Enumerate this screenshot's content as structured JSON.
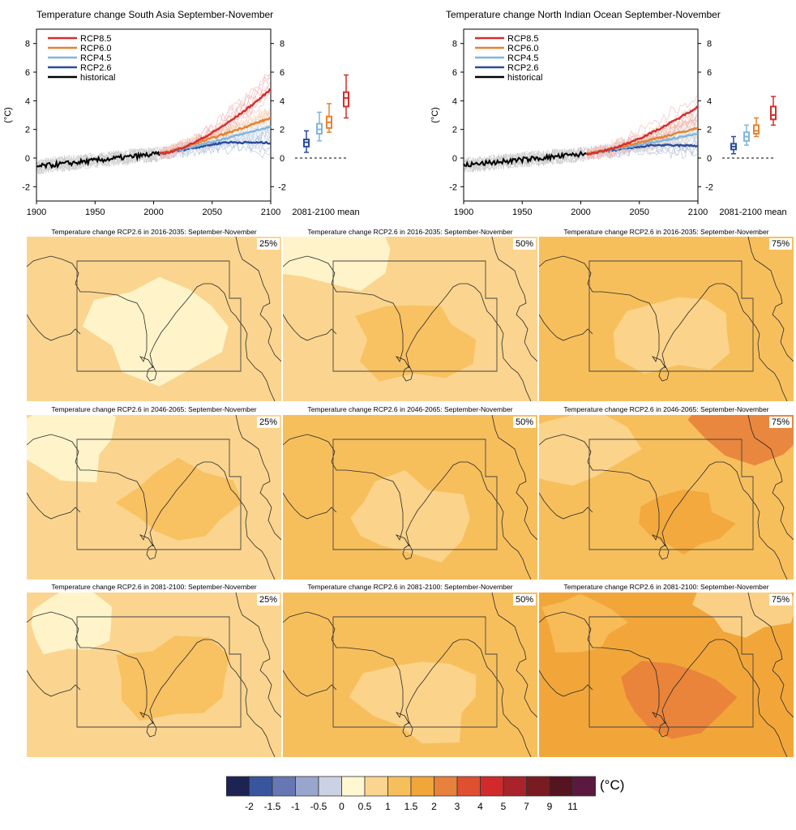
{
  "timeseries": [
    {
      "title": "Temperature change South Asia September-November",
      "ylabel": "(°C)",
      "xticks": [
        "1900",
        "1950",
        "2000",
        "2050",
        "2100"
      ],
      "yticks": [
        "-2",
        "0",
        "2",
        "4",
        "6",
        "8"
      ],
      "box_label": "2081-2100 mean",
      "legend": [
        "RCP8.5",
        "RCP6.0",
        "RCP4.5",
        "RCP2.6",
        "historical"
      ],
      "ylim": [
        -3,
        9
      ],
      "xlim": [
        1900,
        2100
      ],
      "boxes": [
        {
          "scenario": "RCP2.6",
          "median": 1.1,
          "q1": 0.8,
          "q3": 1.3,
          "min": 0.4,
          "max": 1.9
        },
        {
          "scenario": "RCP4.5",
          "median": 2.0,
          "q1": 1.7,
          "q3": 2.4,
          "min": 1.2,
          "max": 3.2
        },
        {
          "scenario": "RCP6.0",
          "median": 2.5,
          "q1": 2.1,
          "q3": 2.9,
          "min": 1.8,
          "max": 3.8
        },
        {
          "scenario": "RCP8.5",
          "median": 4.2,
          "q1": 3.6,
          "q3": 4.6,
          "min": 2.8,
          "max": 5.8
        }
      ],
      "end_means": {
        "RCP8.5": 4.8,
        "RCP6.0": 2.8,
        "RCP4.5": 2.2,
        "RCP2.6": 1.0
      },
      "start_mean": -0.6
    },
    {
      "title": "Temperature change North Indian Ocean September-November",
      "ylabel": "(°C)",
      "xticks": [
        "1900",
        "1950",
        "2000",
        "2050",
        "2100"
      ],
      "yticks": [
        "-2",
        "0",
        "2",
        "4",
        "6",
        "8"
      ],
      "box_label": "2081-2100 mean",
      "legend": [
        "RCP8.5",
        "RCP6.0",
        "RCP4.5",
        "RCP2.6",
        "historical"
      ],
      "ylim": [
        -3,
        9
      ],
      "xlim": [
        1900,
        2100
      ],
      "boxes": [
        {
          "scenario": "RCP2.6",
          "median": 0.8,
          "q1": 0.6,
          "q3": 1.0,
          "min": 0.3,
          "max": 1.5
        },
        {
          "scenario": "RCP4.5",
          "median": 1.5,
          "q1": 1.2,
          "q3": 1.8,
          "min": 0.9,
          "max": 2.3
        },
        {
          "scenario": "RCP6.0",
          "median": 1.9,
          "q1": 1.7,
          "q3": 2.3,
          "min": 1.5,
          "max": 2.8
        },
        {
          "scenario": "RCP8.5",
          "median": 3.0,
          "q1": 2.7,
          "q3": 3.6,
          "min": 2.3,
          "max": 4.3
        }
      ],
      "end_means": {
        "RCP8.5": 3.6,
        "RCP6.0": 2.1,
        "RCP4.5": 1.7,
        "RCP2.6": 0.8
      },
      "start_mean": -0.5
    }
  ],
  "scenario_colors": {
    "RCP8.5": "#d62d2d",
    "RCP6.0": "#e6822f",
    "RCP4.5": "#7fb6dd",
    "RCP2.6": "#2b4c9a",
    "historical": "#000000"
  },
  "maps": [
    {
      "title": "Temperature change RCP2.6 in 2016-2035: September-November",
      "percentile": "25%",
      "level": 0
    },
    {
      "title": "Temperature change RCP2.6 in 2016-2035: September-November",
      "percentile": "50%",
      "level": 1
    },
    {
      "title": "Temperature change RCP2.6 in 2016-2035: September-November",
      "percentile": "75%",
      "level": 2
    },
    {
      "title": "Temperature change RCP2.6 in 2046-2065: September-November",
      "percentile": "25%",
      "level": 1
    },
    {
      "title": "Temperature change RCP2.6 in 2046-2065: September-November",
      "percentile": "50%",
      "level": 2
    },
    {
      "title": "Temperature change RCP2.6 in 2046-2065: September-November",
      "percentile": "75%",
      "level": 3
    },
    {
      "title": "Temperature change RCP2.6 in 2081-2100: September-November",
      "percentile": "25%",
      "level": 1
    },
    {
      "title": "Temperature change RCP2.6 in 2081-2100: September-November",
      "percentile": "50%",
      "level": 2
    },
    {
      "title": "Temperature change RCP2.6 in 2081-2100: September-November",
      "percentile": "75%",
      "level": 4
    }
  ],
  "colorbar": {
    "labels": [
      "-2",
      "-1.5",
      "-1",
      "-0.5",
      "0",
      "0.5",
      "1",
      "1.5",
      "2",
      "3",
      "4",
      "5",
      "7",
      "9",
      "11"
    ],
    "colors": [
      "#1d2451",
      "#3a559d",
      "#6777b3",
      "#98a5cc",
      "#cbd2e3",
      "#fff7cf",
      "#fbd58f",
      "#f7bf5c",
      "#f2a63a",
      "#e8813b",
      "#de5030",
      "#d22a2a",
      "#a8232a",
      "#7a1b22",
      "#561420",
      "#5b1940"
    ],
    "unit": "(°C)"
  },
  "chart_data": [
    {
      "type": "line",
      "title": "Temperature change South Asia September-November",
      "xlabel": "",
      "ylabel": "(°C)",
      "xlim": [
        1900,
        2100
      ],
      "ylim": [
        -3,
        9
      ],
      "series": [
        {
          "name": "historical",
          "x": [
            1900,
            1950,
            2000,
            2005
          ],
          "values": [
            -0.6,
            -0.3,
            0.1,
            0.3
          ]
        },
        {
          "name": "RCP8.5",
          "x": [
            2005,
            2050,
            2100
          ],
          "values": [
            0.3,
            2.2,
            4.8
          ]
        },
        {
          "name": "RCP6.0",
          "x": [
            2005,
            2050,
            2100
          ],
          "values": [
            0.3,
            1.3,
            2.8
          ]
        },
        {
          "name": "RCP4.5",
          "x": [
            2005,
            2050,
            2100
          ],
          "values": [
            0.3,
            1.6,
            2.2
          ]
        },
        {
          "name": "RCP2.6",
          "x": [
            2005,
            2050,
            2100
          ],
          "values": [
            0.3,
            1.1,
            1.0
          ]
        }
      ]
    },
    {
      "type": "line",
      "title": "Temperature change North Indian Ocean September-November",
      "xlabel": "",
      "ylabel": "(°C)",
      "xlim": [
        1900,
        2100
      ],
      "ylim": [
        -3,
        9
      ],
      "series": [
        {
          "name": "historical",
          "x": [
            1900,
            1950,
            2000,
            2005
          ],
          "values": [
            -0.5,
            -0.3,
            0.1,
            0.2
          ]
        },
        {
          "name": "RCP8.5",
          "x": [
            2005,
            2050,
            2100
          ],
          "values": [
            0.2,
            1.6,
            3.6
          ]
        },
        {
          "name": "RCP6.0",
          "x": [
            2005,
            2050,
            2100
          ],
          "values": [
            0.2,
            1.0,
            2.1
          ]
        },
        {
          "name": "RCP4.5",
          "x": [
            2005,
            2050,
            2100
          ],
          "values": [
            0.2,
            1.2,
            1.7
          ]
        },
        {
          "name": "RCP2.6",
          "x": [
            2005,
            2050,
            2100
          ],
          "values": [
            0.2,
            0.8,
            0.8
          ]
        }
      ]
    }
  ]
}
